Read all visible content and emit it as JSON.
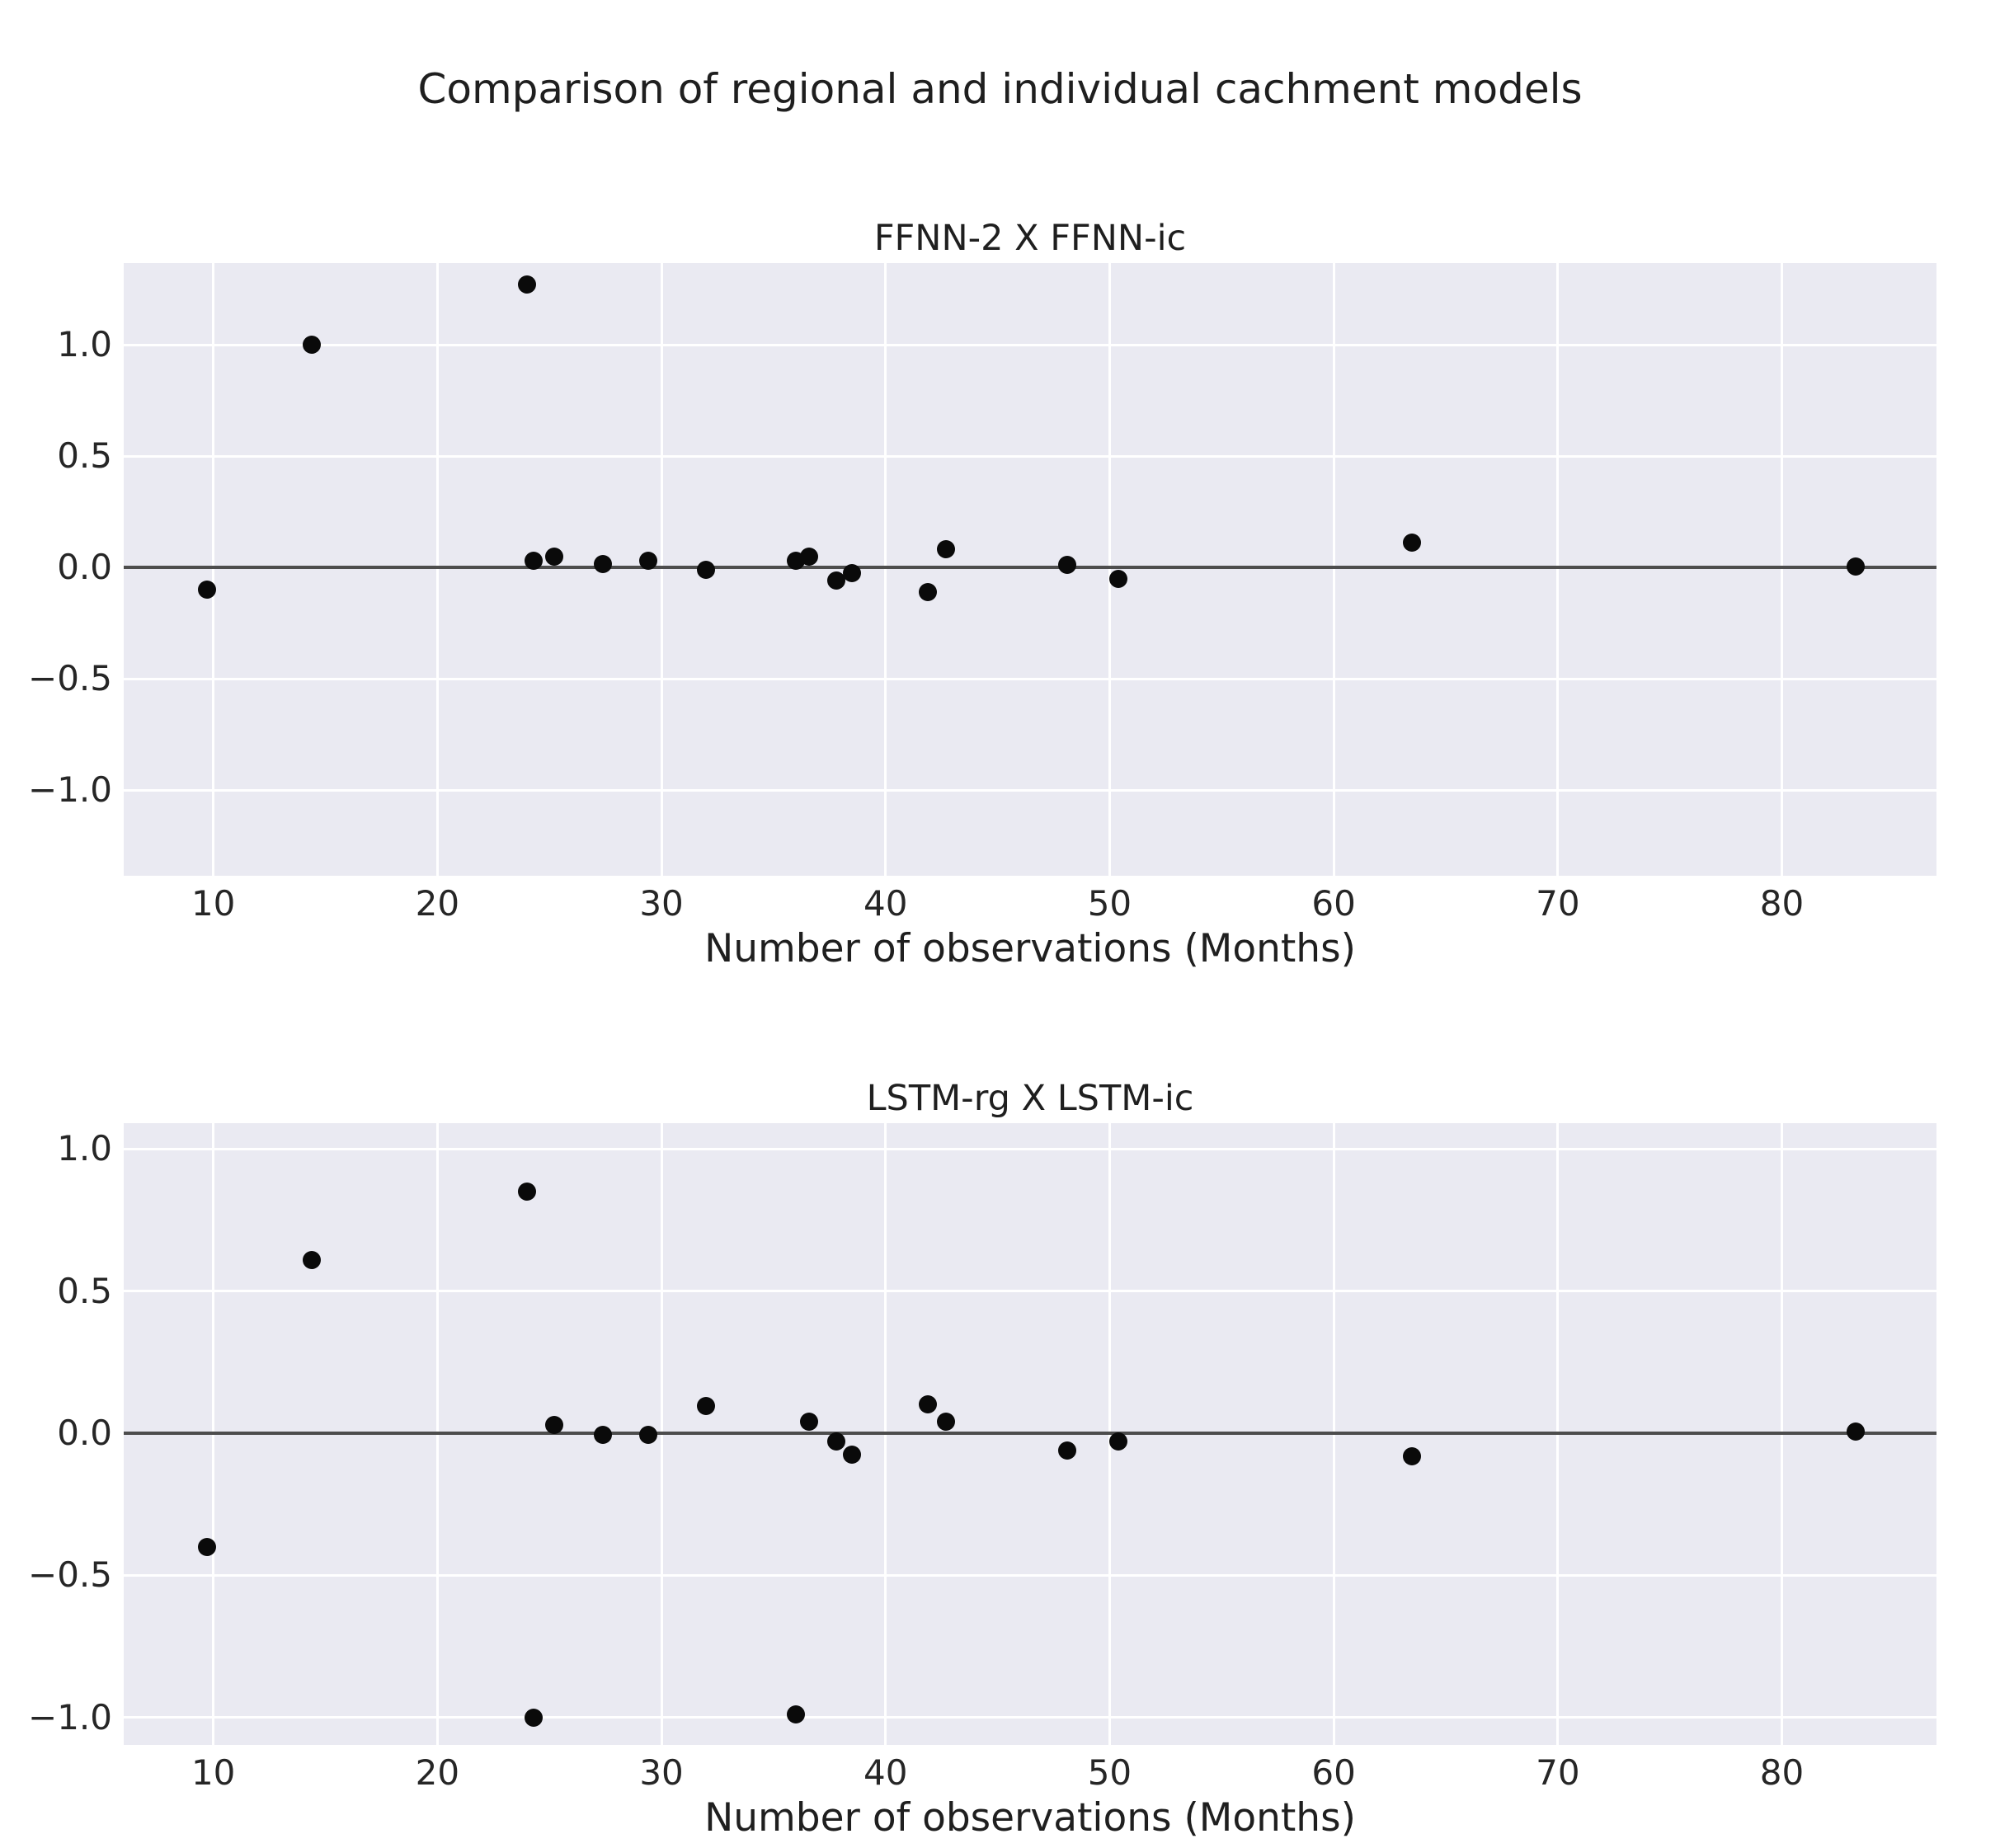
{
  "figure": {
    "title": "Comparison of regional and individual cachment models"
  },
  "style": {
    "axes_background": "#eaeaf2",
    "grid_color": "#ffffff",
    "zero_line_color": "#4d4d4d",
    "point_color": "#0a0a0a",
    "text_color": "#262626"
  },
  "chart_data": [
    {
      "type": "scatter",
      "title": "FFNN-2 X FFNN-ic",
      "xlabel": "Number of observations (Months)",
      "ylabel": "",
      "grid": true,
      "zero_line": true,
      "legend": "none",
      "xlim": [
        6.0,
        86.9
      ],
      "ylim": [
        -1.385,
        1.367
      ],
      "xticks": [
        10,
        20,
        30,
        40,
        50,
        60,
        70,
        80
      ],
      "yticks": [
        1.0,
        0.5,
        0.0,
        -0.5,
        -1.0
      ],
      "ytick_labels": [
        "1.0",
        "0.5",
        "0.0",
        "−0.5",
        "−1.0"
      ],
      "x": [
        9.7,
        14.4,
        24.0,
        24.3,
        25.2,
        27.4,
        29.4,
        32.0,
        36.0,
        36.6,
        37.8,
        38.5,
        41.9,
        42.7,
        48.1,
        50.4,
        63.5,
        83.3
      ],
      "y": [
        -0.1,
        1.0,
        1.27,
        0.03,
        0.05,
        0.015,
        0.03,
        -0.01,
        0.03,
        0.05,
        -0.06,
        -0.025,
        -0.11,
        0.08,
        0.01,
        -0.05,
        0.11,
        0.005
      ]
    },
    {
      "type": "scatter",
      "title": "LSTM-rg X LSTM-ic",
      "xlabel": "Number of observations (Months)",
      "ylabel": "",
      "grid": true,
      "zero_line": true,
      "legend": "none",
      "xlim": [
        6.0,
        86.9
      ],
      "ylim": [
        -1.096,
        1.09
      ],
      "xticks": [
        10,
        20,
        30,
        40,
        50,
        60,
        70,
        80
      ],
      "yticks": [
        1.0,
        0.5,
        0.0,
        -0.5,
        -1.0
      ],
      "ytick_labels": [
        "1.0",
        "0.5",
        "0.0",
        "−0.5",
        "−1.0"
      ],
      "x": [
        9.7,
        14.4,
        24.0,
        24.3,
        25.2,
        27.4,
        29.4,
        32.0,
        36.0,
        36.6,
        37.8,
        38.5,
        41.9,
        42.7,
        48.1,
        50.4,
        63.5,
        83.3
      ],
      "y": [
        -0.4,
        0.61,
        0.85,
        -1.0,
        0.03,
        -0.005,
        -0.005,
        0.095,
        -0.99,
        0.04,
        -0.03,
        -0.075,
        0.1,
        0.04,
        -0.06,
        -0.03,
        -0.08,
        0.005
      ]
    }
  ]
}
